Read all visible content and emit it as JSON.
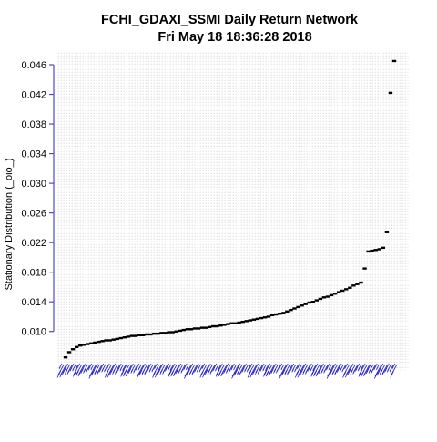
{
  "chart_data": {
    "type": "scatter",
    "title": [
      "FCHI_GDAXI_SSMI  Daily Return Network",
      "Fri May 18 18:36:28 2018"
    ],
    "xlabel": "",
    "ylabel": "Stationary Distribution (_oio_)",
    "yticks": [
      0.01,
      0.014,
      0.018,
      0.022,
      0.026,
      0.03,
      0.034,
      0.038,
      0.042,
      0.046
    ],
    "ytick_labels": [
      "0.010",
      "0.014",
      "0.018",
      "0.022",
      "0.026",
      "0.030",
      "0.034",
      "0.038",
      "0.042",
      "0.046"
    ],
    "ylim": [
      0.0048,
      0.0476
    ],
    "grid": true,
    "x_tick_labels": "dense unreadable node labels, drawn in blue",
    "colors": {
      "points": "#000000",
      "axis": "#4a4adb",
      "grid": "#d0d0d0",
      "xlabels": "#2424c8"
    },
    "x": [
      1,
      2,
      3,
      4,
      5,
      6,
      7,
      8,
      9,
      10,
      11,
      12,
      13,
      14,
      15,
      16,
      17,
      18,
      19,
      20,
      21,
      22,
      23,
      24,
      25,
      26,
      27,
      28,
      29,
      30,
      31,
      32,
      33,
      34,
      35,
      36,
      37,
      38,
      39,
      40,
      41,
      42,
      43,
      44,
      45,
      46,
      47,
      48,
      49,
      50,
      51,
      52,
      53,
      54,
      55,
      56,
      57,
      58,
      59,
      60,
      61,
      62,
      63,
      64,
      65,
      66,
      67,
      68,
      69,
      70,
      71,
      72,
      73,
      74,
      75,
      76,
      77,
      78,
      79,
      80,
      81,
      82,
      83,
      84,
      85,
      86,
      87,
      88,
      89,
      90
    ],
    "values": [
      0.0065,
      0.0072,
      0.0076,
      0.0079,
      0.0081,
      0.0082,
      0.0083,
      0.0084,
      0.0085,
      0.0086,
      0.0087,
      0.0088,
      0.0088,
      0.0089,
      0.009,
      0.0091,
      0.0092,
      0.0093,
      0.0094,
      0.0094,
      0.0095,
      0.0095,
      0.0096,
      0.0096,
      0.0097,
      0.0097,
      0.0098,
      0.0098,
      0.0099,
      0.0099,
      0.01,
      0.0101,
      0.0102,
      0.0103,
      0.0103,
      0.0104,
      0.0104,
      0.0105,
      0.0105,
      0.0106,
      0.0107,
      0.0107,
      0.0108,
      0.0109,
      0.011,
      0.0111,
      0.0111,
      0.0112,
      0.0113,
      0.0114,
      0.0115,
      0.0116,
      0.0117,
      0.0118,
      0.0119,
      0.012,
      0.0122,
      0.0123,
      0.0124,
      0.0125,
      0.0127,
      0.0129,
      0.0131,
      0.0133,
      0.0135,
      0.0137,
      0.0139,
      0.014,
      0.0142,
      0.0144,
      0.0146,
      0.0147,
      0.0149,
      0.0151,
      0.0153,
      0.0155,
      0.0157,
      0.0159,
      0.0162,
      0.0164,
      0.0166,
      0.0185,
      0.0208,
      0.0209,
      0.021,
      0.0211,
      0.0213,
      0.0234,
      0.0422,
      0.0465
    ]
  }
}
